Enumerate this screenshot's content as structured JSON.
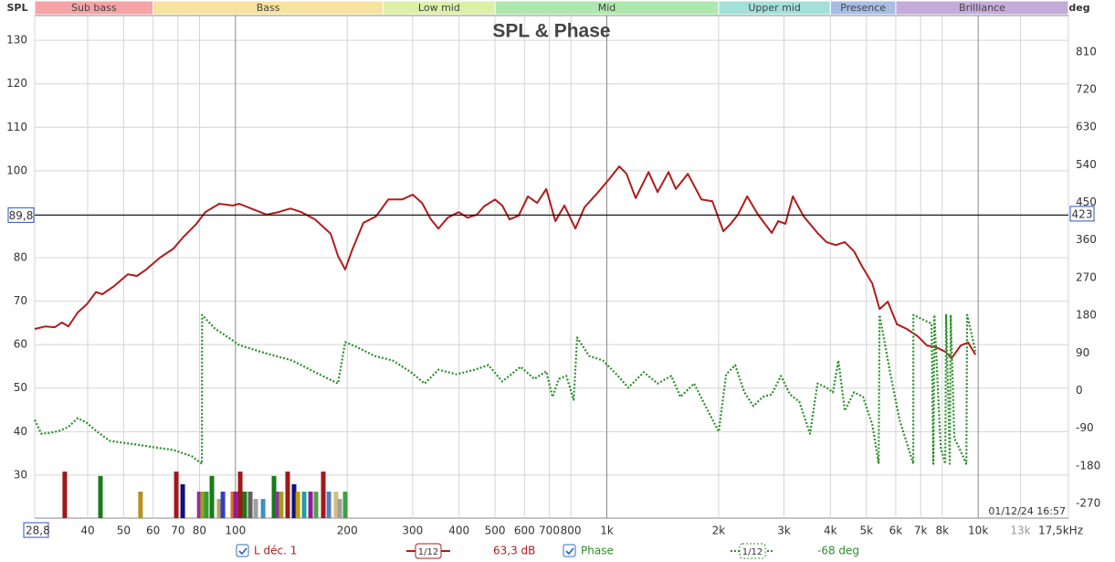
{
  "chart_data": {
    "type": "line",
    "title": "SPL & Phase",
    "y_label": "SPL",
    "y2_label": "deg",
    "timestamp": "01/12/24 16:57",
    "xscale": "log",
    "grid": true,
    "xlim": [
      28.8,
      17500
    ],
    "ylim": [
      20.1,
      135.7
    ],
    "y2lim": [
      -305,
      897
    ],
    "xticks": [
      {
        "value": 28.8,
        "label": "28,8"
      },
      40,
      50,
      60,
      70,
      80,
      100,
      200,
      300,
      400,
      500,
      600,
      700,
      800,
      {
        "value": 1000,
        "label": "1k"
      },
      {
        "value": 2000,
        "label": "2k"
      },
      {
        "value": 3000,
        "label": "3k"
      },
      {
        "value": 4000,
        "label": "4k"
      },
      {
        "value": 5000,
        "label": "5k"
      },
      {
        "value": 6000,
        "label": "6k"
      },
      {
        "value": 7000,
        "label": "7k"
      },
      {
        "value": 8000,
        "label": "8k"
      },
      {
        "value": 10000,
        "label": "10k"
      },
      {
        "value": 13000,
        "label": "13k"
      },
      {
        "value": 17500,
        "label": "17,5kHz"
      }
    ],
    "yticks": [
      30,
      40,
      50,
      60,
      70,
      80,
      90,
      100,
      110,
      120,
      130
    ],
    "y2ticks": [
      -270,
      -180,
      -90,
      0,
      90,
      180,
      270,
      360,
      450,
      540,
      630,
      720,
      810
    ],
    "cursor": {
      "value": 89.8,
      "label": "89,8",
      "y2_value": 423
    },
    "bands": [
      {
        "name": "Sub bass",
        "from": 20,
        "to": 60,
        "color": "#f4a3a8"
      },
      {
        "name": "Bass",
        "from": 60,
        "to": 250,
        "color": "#f7e3a0"
      },
      {
        "name": "Low mid",
        "from": 250,
        "to": 500,
        "color": "#dcf0a8"
      },
      {
        "name": "Mid",
        "from": 500,
        "to": 2000,
        "color": "#aee8ae"
      },
      {
        "name": "Upper mid",
        "from": 2000,
        "to": 4000,
        "color": "#a4e0da"
      },
      {
        "name": "Presence",
        "from": 4000,
        "to": 6000,
        "color": "#a8bce4"
      },
      {
        "name": "Brilliance",
        "from": 6000,
        "to": 20000,
        "color": "#c4abd9"
      }
    ],
    "series": [
      {
        "name": "L déc. 1",
        "color": "#b01c1c",
        "axis": "y",
        "smoothing": "1/12",
        "readout": "63,3 dB",
        "x": [
          28.8,
          30.8,
          32.6,
          34.1,
          35.5,
          37.6,
          39.8,
          42.1,
          43.8,
          47.2,
          51.3,
          54.3,
          57.5,
          62.6,
          68.1,
          72.1,
          78.5,
          83.0,
          90.4,
          98.4,
          102.4,
          110.2,
          121.4,
          130.6,
          140.6,
          150.5,
          163.8,
          180.5,
          188.8,
          197.5,
          205.5,
          221,
          239,
          258,
          281,
          300,
          318,
          336,
          352,
          373,
          399,
          422,
          447,
          467,
          500,
          523,
          547,
          579,
          613,
          649,
          687,
          727,
          769,
          823,
          871,
          948,
          1020,
          1080,
          1130,
          1196,
          1295,
          1370,
          1466,
          1534,
          1652,
          1798,
          1924,
          2060,
          2156,
          2255,
          2387,
          2554,
          2781,
          2894,
          3027,
          3168,
          3390,
          3692,
          3905,
          4133,
          4374,
          4630,
          4845,
          5185,
          5426,
          5709,
          6041,
          6428,
          6878,
          7281,
          7705,
          8154,
          8484,
          8978,
          9396,
          9831
        ],
        "values": [
          63.6,
          64.2,
          64.0,
          65.1,
          64.2,
          67.4,
          69.3,
          72.1,
          71.6,
          73.5,
          76.2,
          75.8,
          77.3,
          80.0,
          82.1,
          84.6,
          87.8,
          90.5,
          92.4,
          92.0,
          92.4,
          91.3,
          89.9,
          90.5,
          91.3,
          90.5,
          88.8,
          85.5,
          80.4,
          77.3,
          81.5,
          88.0,
          89.5,
          93.4,
          93.4,
          94.5,
          92.6,
          88.8,
          86.7,
          89.2,
          90.5,
          89.2,
          89.9,
          91.8,
          93.4,
          92.0,
          88.8,
          89.7,
          94.1,
          92.6,
          95.8,
          88.4,
          92.0,
          86.7,
          91.6,
          95.1,
          98.3,
          101.0,
          99.3,
          93.7,
          99.7,
          95.1,
          99.7,
          95.8,
          99.3,
          93.4,
          93.0,
          86.1,
          87.8,
          89.9,
          94.1,
          89.9,
          85.7,
          88.4,
          87.8,
          94.1,
          89.5,
          85.7,
          83.6,
          82.9,
          83.6,
          81.5,
          78.3,
          74.1,
          68.2,
          69.9,
          64.7,
          63.6,
          61.9,
          59.8,
          59.4,
          58.4,
          56.9,
          59.8,
          60.5,
          57.7
        ]
      },
      {
        "name": "Phase",
        "color": "#2a8f2a",
        "axis": "y2",
        "smoothing": "1/12",
        "readout": "-68 deg",
        "x": [
          28.8,
          30.0,
          31.7,
          33.6,
          35.5,
          37.6,
          39.8,
          42.1,
          45.8,
          49.9,
          54.3,
          60.8,
          68.1,
          76.3,
          81.2,
          81.3,
          87.9,
          95.7,
          102.4,
          120.0,
          142.2,
          163.8,
          188.8,
          197.5,
          211.4,
          236.7,
          265.2,
          296.9,
          323.3,
          352,
          394,
          441,
          480,
          523,
          586,
          638,
          687,
          714,
          743,
          778,
          814,
          832,
          896,
          976,
          1062,
          1143,
          1258,
          1370,
          1491,
          1578,
          1718,
          1871,
          2002,
          2096,
          2217,
          2346,
          2483,
          2628,
          2781,
          2943,
          3114,
          3296,
          3527,
          3692,
          3905,
          4063,
          4204,
          4374,
          4630,
          4899,
          5185,
          5395,
          5426,
          5806,
          6144,
          6687,
          6690,
          7491,
          7576,
          7620,
          7927,
          8154,
          8201,
          8388,
          8435,
          8630,
          8877,
          9290,
          9340,
          9831
        ],
        "values": [
          -70,
          -103,
          -101,
          -96,
          -87,
          -66,
          -77,
          -96,
          -120,
          -125,
          -129,
          -136,
          -142,
          -157,
          -175,
          181,
          149,
          127,
          109,
          90,
          72,
          44,
          17,
          116,
          105,
          83,
          72,
          44,
          17,
          50,
          39,
          50,
          61,
          22,
          57,
          28,
          46,
          -15,
          28,
          35,
          -22,
          127,
          83,
          72,
          39,
          7,
          44,
          17,
          35,
          -15,
          17,
          -48,
          -98,
          39,
          61,
          -4,
          -37,
          -15,
          -9,
          35,
          -9,
          -26,
          -103,
          17,
          7,
          -4,
          72,
          -48,
          -4,
          -15,
          -81,
          -175,
          181,
          39,
          -70,
          -175,
          181,
          160,
          -175,
          181,
          -136,
          -175,
          181,
          -175,
          181,
          -114,
          -136,
          -175,
          181,
          94
        ]
      }
    ],
    "mode_markers": {
      "x": [
        34.7,
        43.3,
        55.5,
        69.3,
        72.1,
        79.9,
        81.6,
        83.5,
        86.4,
        90.4,
        92.5,
        98.4,
        100.1,
        103.0,
        105.9,
        109.6,
        113.4,
        118.7,
        127.0,
        129.9,
        132.8,
        138.2,
        143.8,
        147.2,
        153.1,
        159.3,
        164.8,
        172.4,
        178.4,
        186.6,
        190.9,
        197.5
      ],
      "values": [
        30.8,
        29.8,
        26.2,
        30.8,
        27.9,
        26.2,
        26.2,
        26.2,
        29.8,
        24.5,
        26.2,
        26.2,
        26.2,
        30.8,
        26.2,
        26.2,
        24.5,
        24.5,
        29.8,
        26.2,
        26.2,
        30.8,
        27.9,
        26.2,
        26.2,
        26.2,
        26.2,
        30.8,
        26.2,
        26.2,
        24.5,
        26.2
      ],
      "colors": [
        "#a01818",
        "#1a7a1a",
        "#b89020",
        "#a01818",
        "#101080",
        "#9030a0",
        "#a0a020",
        "#30a030",
        "#1a7a1a",
        "#b8a060",
        "#3040c0",
        "#e07020",
        "#902090",
        "#a01818",
        "#1a7a1a",
        "#606060",
        "#a0a0a0",
        "#4090c0",
        "#1a7a1a",
        "#9030a0",
        "#a0a020",
        "#a01818",
        "#101080",
        "#c0a000",
        "#20a0a0",
        "#902090",
        "#50a050",
        "#a01818",
        "#5080c0",
        "#d0c080",
        "#a0a0a0",
        "#40a040"
      ]
    }
  }
}
